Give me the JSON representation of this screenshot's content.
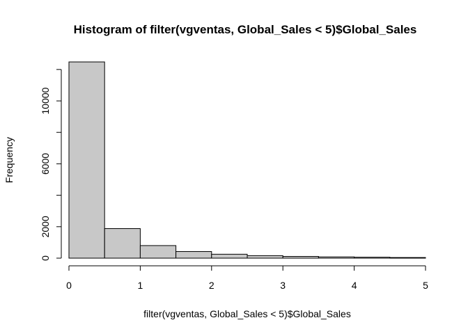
{
  "chart_data": {
    "type": "bar",
    "title": "Histogram of filter(vgventas, Global_Sales < 5)$Global_Sales",
    "xlabel": "filter(vgventas, Global_Sales < 5)$Global_Sales",
    "ylabel": "Frequency",
    "bins": [
      {
        "x0": 0.0,
        "x1": 0.5,
        "count": 12480
      },
      {
        "x0": 0.5,
        "x1": 1.0,
        "count": 1880
      },
      {
        "x0": 1.0,
        "x1": 1.5,
        "count": 800
      },
      {
        "x0": 1.5,
        "x1": 2.0,
        "count": 420
      },
      {
        "x0": 2.0,
        "x1": 2.5,
        "count": 250
      },
      {
        "x0": 2.5,
        "x1": 3.0,
        "count": 160
      },
      {
        "x0": 3.0,
        "x1": 3.5,
        "count": 110
      },
      {
        "x0": 3.5,
        "x1": 4.0,
        "count": 80
      },
      {
        "x0": 4.0,
        "x1": 4.5,
        "count": 60
      },
      {
        "x0": 4.5,
        "x1": 5.0,
        "count": 40
      }
    ],
    "xlim": [
      0,
      5
    ],
    "ylim": [
      0,
      12480
    ],
    "x_ticks": [
      0,
      1,
      2,
      3,
      4,
      5
    ],
    "y_ticks": [
      0,
      2000,
      6000,
      10000
    ],
    "grid": false,
    "fill_color": "#c8c8c8"
  }
}
